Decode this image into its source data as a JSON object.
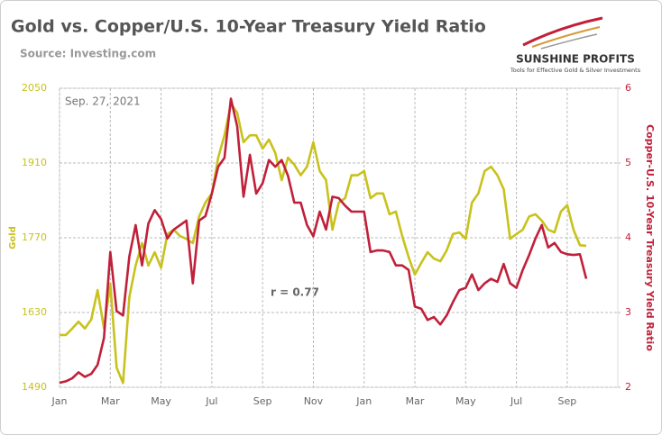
{
  "chart_data": {
    "type": "line",
    "title": "Gold vs. Copper/U.S. 10-Year Treasury Yield Ratio",
    "subtitle": "Source: Investing.com",
    "annotations": [
      "Sep. 27, 2021",
      "r = 0.77"
    ],
    "ylabel": "Gold",
    "y2label": "Copper-U.S. 10-Year Treasury Yield Ratio",
    "categories": [
      "Jan",
      null,
      null,
      null,
      null,
      null,
      null,
      null,
      "Mar",
      null,
      null,
      null,
      null,
      null,
      null,
      null,
      "May",
      null,
      null,
      null,
      null,
      null,
      null,
      null,
      "Jul",
      null,
      null,
      null,
      null,
      null,
      null,
      null,
      "Sep",
      null,
      null,
      null,
      null,
      null,
      null,
      null,
      "Nov",
      null,
      null,
      null,
      null,
      null,
      null,
      null,
      "Jan",
      null,
      null,
      null,
      null,
      null,
      null,
      null,
      "Mar",
      null,
      null,
      null,
      null,
      null,
      null,
      null,
      "May",
      null,
      null,
      null,
      null,
      null,
      null,
      null,
      "Jul",
      null,
      null,
      null,
      null,
      null,
      null,
      null,
      "Sep",
      null,
      null,
      null
    ],
    "series": [
      {
        "color": "#c8c21c",
        "values": [
          1588,
          1588,
          1600,
          1613,
          1600,
          1617,
          1672,
          1600,
          1684,
          1527,
          1498,
          1659,
          1718,
          1760,
          1718,
          1743,
          1714,
          1777,
          1785,
          1773,
          1768,
          1760,
          1810,
          1836,
          1853,
          1920,
          1962,
          2021,
          2004,
          1949,
          1962,
          1962,
          1937,
          1954,
          1929,
          1878,
          1920,
          1907,
          1887,
          1903,
          1949,
          1895,
          1878,
          1785,
          1836,
          1844,
          1887,
          1887,
          1895,
          1844,
          1853,
          1853,
          1814,
          1819,
          1773,
          1734,
          1701,
          1723,
          1743,
          1731,
          1726,
          1746,
          1777,
          1780,
          1768,
          1836,
          1853,
          1895,
          1903,
          1887,
          1861,
          1768,
          1777,
          1785,
          1810,
          1814,
          1802,
          1785,
          1780,
          1819,
          1831,
          1785,
          1756,
          1755
        ]
      },
      {
        "color": "#c0203a",
        "axis": "y2",
        "values": [
          2.06,
          2.08,
          2.12,
          2.2,
          2.14,
          2.18,
          2.3,
          2.66,
          3.81,
          3.02,
          2.96,
          3.75,
          4.17,
          3.63,
          4.19,
          4.37,
          4.25,
          3.99,
          4.11,
          4.17,
          4.23,
          3.39,
          4.23,
          4.29,
          4.59,
          4.95,
          5.07,
          5.86,
          5.49,
          4.55,
          5.11,
          4.59,
          4.73,
          5.04,
          4.95,
          5.04,
          4.83,
          4.47,
          4.47,
          4.17,
          4.02,
          4.35,
          4.11,
          4.55,
          4.53,
          4.43,
          4.35,
          4.35,
          4.35,
          3.81,
          3.83,
          3.83,
          3.81,
          3.63,
          3.63,
          3.57,
          3.08,
          3.05,
          2.9,
          2.94,
          2.84,
          2.96,
          3.14,
          3.3,
          3.33,
          3.51,
          3.3,
          3.39,
          3.45,
          3.41,
          3.65,
          3.39,
          3.33,
          3.57,
          3.77,
          3.99,
          4.17,
          3.87,
          3.93,
          3.81,
          3.78,
          3.77,
          3.78,
          3.45
        ]
      }
    ],
    "ylim": [
      1490,
      2050
    ],
    "yticks": [
      1490,
      1630,
      1770,
      1910,
      2050
    ],
    "y2lim": [
      2,
      6
    ],
    "y2ticks": [
      2,
      3,
      4,
      5,
      6
    ],
    "grid": true
  },
  "logo": {
    "name": "SUNSHINE PROFITS",
    "tagline": "Tools for Effective Gold & Silver Investments"
  }
}
